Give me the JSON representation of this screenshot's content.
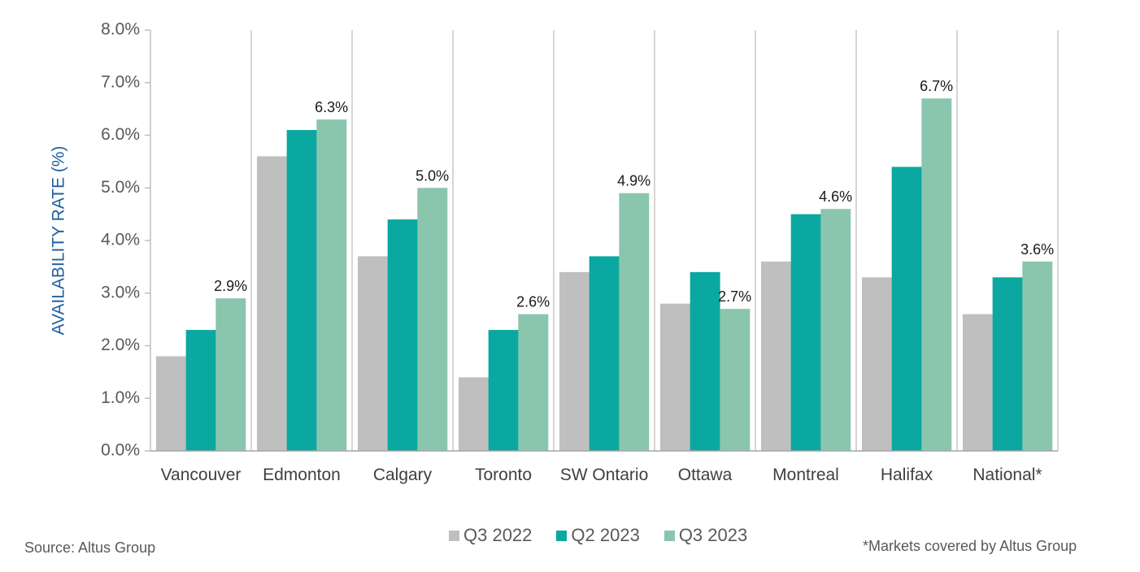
{
  "chart_data": {
    "type": "bar",
    "title": "",
    "xlabel": "",
    "ylabel": "AVAILABILITY RATE (%)",
    "ylim": [
      0,
      8
    ],
    "yticks": [
      "0.0%",
      "1.0%",
      "2.0%",
      "3.0%",
      "4.0%",
      "5.0%",
      "6.0%",
      "7.0%",
      "8.0%"
    ],
    "ytick_values": [
      0,
      1,
      2,
      3,
      4,
      5,
      6,
      7,
      8
    ],
    "grid": "vertical separators between categories",
    "legend_position": "bottom",
    "categories": [
      "Vancouver",
      "Edmonton",
      "Calgary",
      "Toronto",
      "SW Ontario",
      "Ottawa",
      "Montreal",
      "Halifax",
      "National*"
    ],
    "series": [
      {
        "name": "Q3 2022",
        "color": "#bfbfbf",
        "values": [
          1.8,
          5.6,
          3.7,
          1.4,
          3.4,
          2.8,
          3.6,
          3.3,
          2.6
        ]
      },
      {
        "name": "Q2 2023",
        "color": "#0aa8a0",
        "values": [
          2.3,
          6.1,
          4.4,
          2.3,
          3.7,
          3.4,
          4.5,
          5.4,
          3.3
        ]
      },
      {
        "name": "Q3 2023",
        "color": "#8ac6ae",
        "values": [
          2.9,
          6.3,
          5.0,
          2.6,
          4.9,
          2.7,
          4.6,
          6.7,
          3.6
        ]
      }
    ],
    "data_labels": {
      "series": "Q3 2023",
      "labels": [
        "2.9%",
        "6.3%",
        "5.0%",
        "2.6%",
        "4.9%",
        "2.7%",
        "4.6%",
        "6.7%",
        "3.6%"
      ]
    }
  },
  "footer": {
    "source": "Source: Altus Group",
    "note": "*Markets covered by Altus Group"
  }
}
